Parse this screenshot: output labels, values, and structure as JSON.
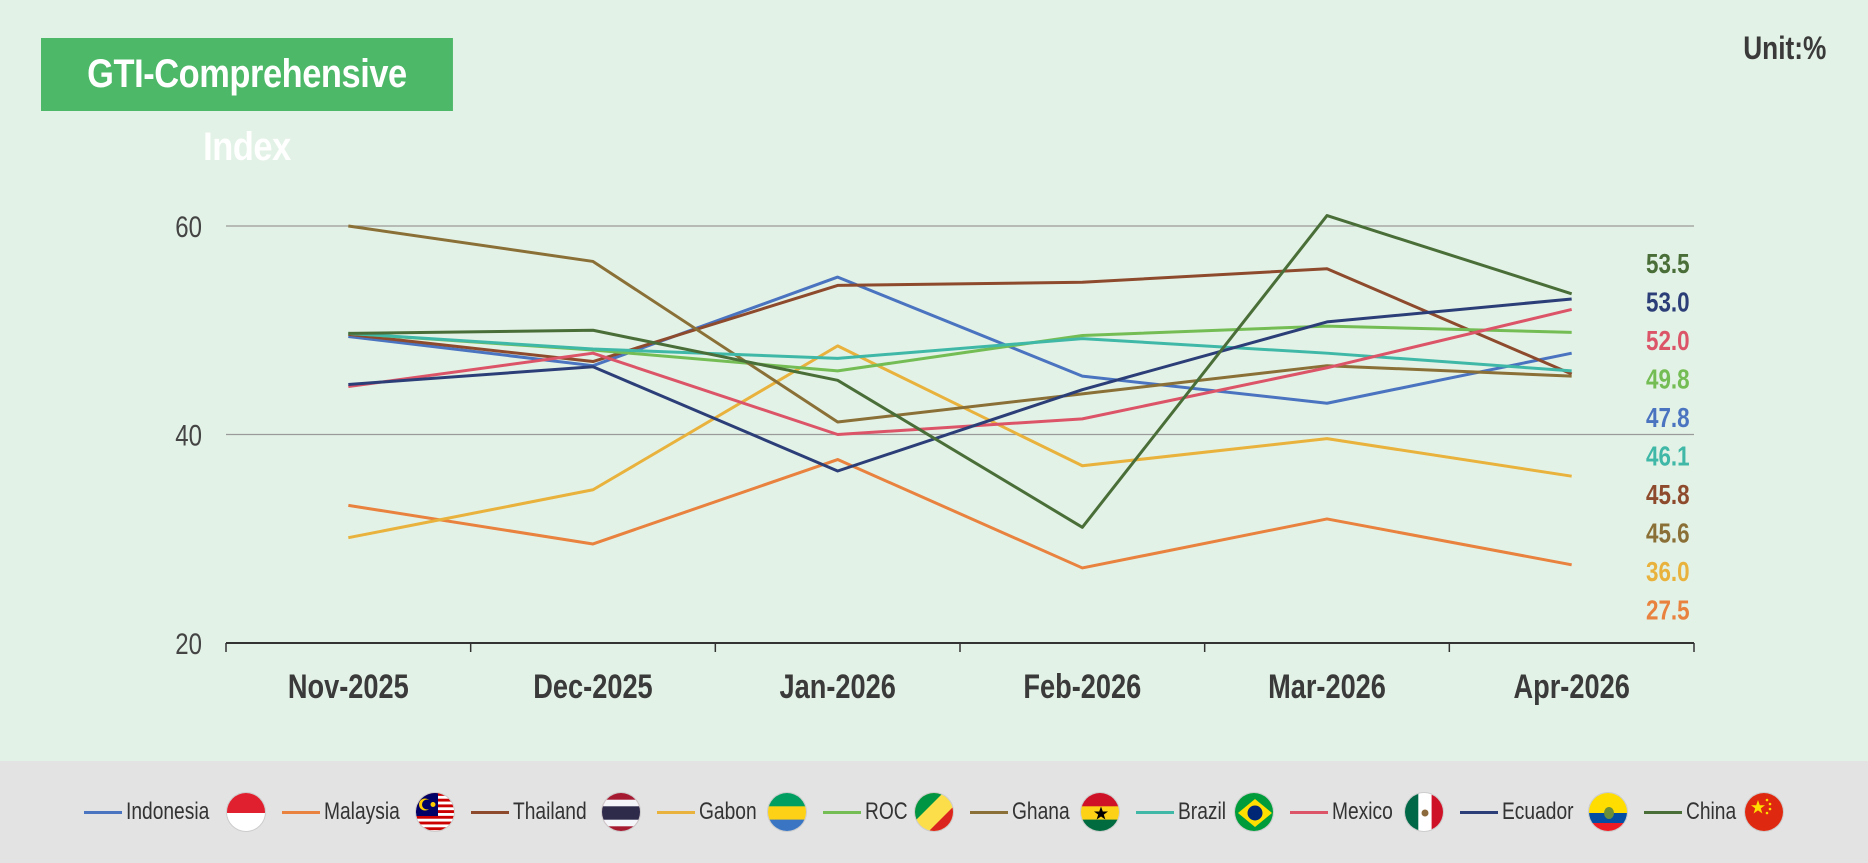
{
  "header": {
    "title": "GTI-Comprehensive Index",
    "unit": "Unit:%"
  },
  "chart_data": {
    "type": "line",
    "categories": [
      "Nov-2025",
      "Dec-2025",
      "Jan-2026",
      "Feb-2026",
      "Mar-2026",
      "Apr-2026"
    ],
    "ylim": [
      20,
      60
    ],
    "yticks": [
      20,
      40,
      60
    ],
    "grid": true,
    "legend_placement": "bottom",
    "series": [
      {
        "name": "Indonesia",
        "color": "#4a73c0",
        "flag": "indonesia-flag-icon",
        "values": [
          49.4,
          46.6,
          55.1,
          45.6,
          43.0,
          47.8
        ],
        "end_label": "47.8"
      },
      {
        "name": "Malaysia",
        "color": "#e8823e",
        "flag": "malaysia-flag-icon",
        "values": [
          33.2,
          29.5,
          37.6,
          27.2,
          31.9,
          27.5
        ],
        "end_label": "27.5"
      },
      {
        "name": "Thailand",
        "color": "#8e4a2c",
        "flag": "thailand-flag-icon",
        "values": [
          49.6,
          47.0,
          54.3,
          54.6,
          55.9,
          45.8
        ],
        "end_label": "45.8"
      },
      {
        "name": "Gabon",
        "color": "#e8b23c",
        "flag": "gabon-flag-icon",
        "values": [
          30.1,
          34.7,
          48.5,
          37.0,
          39.6,
          36.0
        ],
        "end_label": "36.0"
      },
      {
        "name": "ROC",
        "color": "#74bd55",
        "flag": "roc-flag-icon",
        "values": [
          49.7,
          48.1,
          46.1,
          49.5,
          50.4,
          49.8
        ],
        "end_label": "49.8"
      },
      {
        "name": "Ghana",
        "color": "#8a7036",
        "flag": "ghana-flag-icon",
        "values": [
          60.0,
          56.6,
          41.2,
          43.9,
          46.6,
          45.6
        ],
        "end_label": "45.6"
      },
      {
        "name": "Brazil",
        "color": "#3fb8a8",
        "flag": "brazil-flag-icon",
        "values": [
          49.7,
          48.2,
          47.3,
          49.2,
          47.8,
          46.1
        ],
        "end_label": "46.1"
      },
      {
        "name": "Mexico",
        "color": "#dc5468",
        "flag": "mexico-flag-icon",
        "values": [
          44.6,
          47.8,
          40.0,
          41.5,
          46.4,
          52.0
        ],
        "end_label": "52.0"
      },
      {
        "name": "Ecuador",
        "color": "#2c3e78",
        "flag": "ecuador-flag-icon",
        "values": [
          44.8,
          46.5,
          36.5,
          44.3,
          50.8,
          53.0
        ],
        "end_label": "53.0"
      },
      {
        "name": "China",
        "color": "#4a6e38",
        "flag": "china-flag-icon",
        "values": [
          49.7,
          50.0,
          45.2,
          31.1,
          61.0,
          53.5
        ],
        "end_label": "53.5"
      }
    ],
    "end_label_order": [
      "China",
      "Ecuador",
      "Mexico",
      "ROC",
      "Indonesia",
      "Brazil",
      "Thailand",
      "Ghana",
      "Gabon",
      "Malaysia"
    ]
  }
}
